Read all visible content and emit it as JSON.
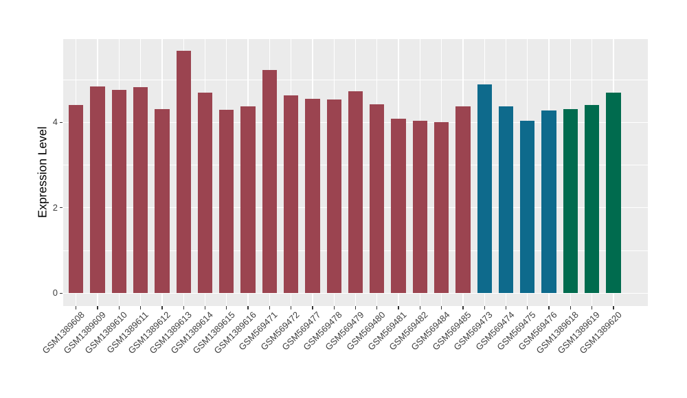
{
  "figure": {
    "background": "#FFFFFF",
    "panel_background": "#EBEBEB",
    "gridline_color": "#FFFFFF",
    "axis_text_color": "#3d3d3d",
    "tick_mark_color": "#333333"
  },
  "chart_data": {
    "type": "bar",
    "title": "",
    "xlabel": "",
    "ylabel": "Expression Level",
    "ylim": [
      -0.3,
      5.95
    ],
    "ytick_values": [
      0,
      2,
      4
    ],
    "ytick_labels": [
      "0",
      "2",
      "4"
    ],
    "grid": {
      "major_y": [
        0,
        2,
        4
      ],
      "minor_y": [
        1,
        3,
        5
      ],
      "vertical_major_at_bar_centers": true
    },
    "legend_position": "none",
    "bar_width_ratio": 0.68,
    "x_label_rotation_deg": 45,
    "categories": [
      "GSM1389608",
      "GSM1389609",
      "GSM1389610",
      "GSM1389611",
      "GSM1389612",
      "GSM1389613",
      "GSM1389614",
      "GSM1389615",
      "GSM1389616",
      "GSM569471",
      "GSM569472",
      "GSM569477",
      "GSM569478",
      "GSM569479",
      "GSM569480",
      "GSM569481",
      "GSM569482",
      "GSM569484",
      "GSM569485",
      "GSM569473",
      "GSM569474",
      "GSM569475",
      "GSM569476",
      "GSM1389618",
      "GSM1389619",
      "GSM1389620"
    ],
    "values": [
      4.41,
      4.84,
      4.76,
      4.82,
      4.31,
      5.67,
      4.7,
      4.3,
      4.38,
      5.22,
      4.64,
      4.56,
      4.54,
      4.73,
      4.43,
      4.08,
      4.04,
      4.01,
      4.37,
      4.89,
      4.37,
      4.04,
      4.28,
      4.31,
      4.41,
      4.7
    ],
    "color_groups": [
      {
        "color": "#9B4450",
        "start": 0,
        "end": 18
      },
      {
        "color": "#0E6A8C",
        "start": 19,
        "end": 22
      },
      {
        "color": "#006B4E",
        "start": 23,
        "end": 25
      }
    ]
  }
}
